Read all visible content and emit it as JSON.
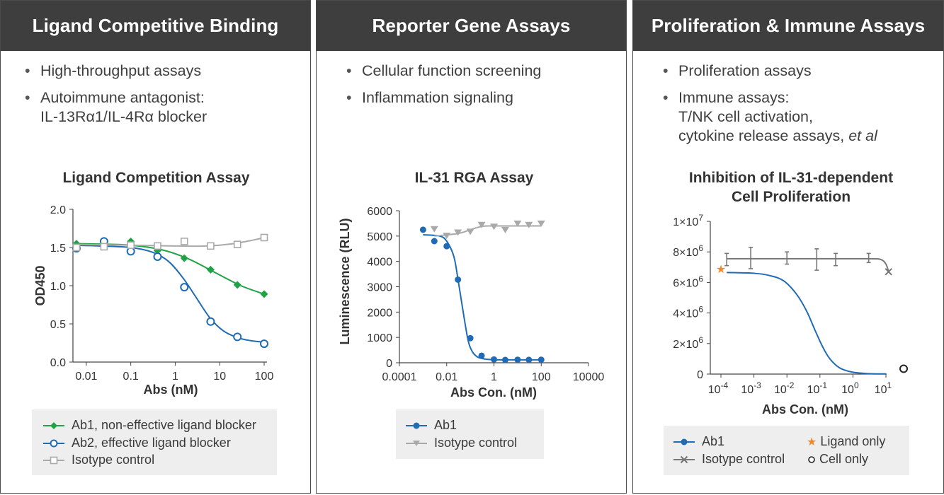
{
  "panels": [
    {
      "header": "Ligand Competitive Binding",
      "bullets": [
        {
          "text": "High-throughput assays"
        },
        {
          "text": "Autoimmune antagonist:",
          "line2": "IL-13Rα1/IL-4Rα blocker"
        }
      ],
      "chart_title": "Ligand Competition Assay",
      "legend": [
        "Ab1, non-effective ligand blocker",
        "Ab2, effective ligand blocker",
        "Isotype control"
      ]
    },
    {
      "header": "Reporter Gene Assays",
      "bullets": [
        {
          "text": "Cellular function screening"
        },
        {
          "text": "Inflammation signaling"
        }
      ],
      "chart_title": "IL-31 RGA Assay",
      "legend": [
        "Ab1",
        "Isotype control"
      ]
    },
    {
      "header": "Proliferation & Immune Assays",
      "bullets": [
        {
          "text": "Proliferation assays"
        },
        {
          "text": "Immune assays:",
          "line2": "T/NK cell activation,",
          "line3": "cytokine release assays, ",
          "line3_italic": "et al"
        }
      ],
      "chart_title_line1": "Inhibition of IL-31-dependent",
      "chart_title_line2": "Cell Proliferation",
      "legend": [
        "Ab1",
        "Isotype control",
        "Ligand only",
        "Cell only"
      ]
    }
  ],
  "colors": {
    "blue": "#1f6bb5",
    "green": "#1fa344",
    "gray": "#a9a9a9",
    "darkgray": "#777777",
    "orange": "#f0892a"
  },
  "chart_data": [
    {
      "type": "scatter",
      "title": "Ligand Competition Assay",
      "xlabel": "Abs (nM)",
      "ylabel": "OD450",
      "xscale": "log",
      "xlim": [
        0.005,
        100
      ],
      "ylim": [
        0,
        2.0
      ],
      "xticks": [
        0.01,
        0.1,
        1,
        10,
        100
      ],
      "xtick_labels": [
        "0.01",
        "0.1",
        "1",
        "10",
        "100"
      ],
      "yticks": [
        0,
        0.5,
        1.0,
        1.5,
        2.0
      ],
      "ytick_labels": [
        "0.0",
        "0.5",
        "1.0",
        "1.5",
        "2.0"
      ],
      "legend_position": "bottom",
      "series": [
        {
          "name": "Ab1, non-effective ligand blocker",
          "marker": "diamond",
          "color": "#1fa344",
          "x": [
            0.006,
            0.025,
            0.1,
            0.4,
            1.6,
            6.25,
            25,
            100
          ],
          "y": [
            1.55,
            1.52,
            1.58,
            1.46,
            1.36,
            1.21,
            1.01,
            0.89
          ],
          "fit_x": [
            0.005,
            0.02,
            0.1,
            0.5,
            2,
            8,
            30,
            100
          ],
          "fit_y": [
            1.55,
            1.545,
            1.53,
            1.47,
            1.35,
            1.17,
            1.0,
            0.89
          ]
        },
        {
          "name": "Ab2, effective ligand blocker",
          "marker": "open-circle",
          "color": "#1f6bb5",
          "x": [
            0.006,
            0.025,
            0.1,
            0.4,
            1.6,
            6.25,
            25,
            100
          ],
          "y": [
            1.49,
            1.58,
            1.45,
            1.38,
            0.98,
            0.53,
            0.33,
            0.24
          ],
          "fit_x": [
            0.005,
            0.02,
            0.1,
            0.3,
            0.7,
            1.5,
            3,
            6,
            12,
            25,
            50,
            100
          ],
          "fit_y": [
            1.53,
            1.52,
            1.5,
            1.44,
            1.32,
            1.1,
            0.84,
            0.58,
            0.41,
            0.32,
            0.28,
            0.26
          ]
        },
        {
          "name": "Isotype control",
          "marker": "open-square",
          "color": "#a9a9a9",
          "x": [
            0.006,
            0.025,
            0.1,
            0.4,
            1.6,
            6.25,
            25,
            100
          ],
          "y": [
            1.5,
            1.51,
            1.53,
            1.52,
            1.58,
            1.52,
            1.54,
            1.63
          ],
          "fit_x": [
            0.005,
            0.1,
            1,
            5,
            20,
            60,
            100
          ],
          "fit_y": [
            1.54,
            1.53,
            1.52,
            1.52,
            1.55,
            1.6,
            1.63
          ]
        }
      ]
    },
    {
      "type": "scatter",
      "title": "IL-31 RGA Assay",
      "xlabel": "Abs Con. (nM)",
      "ylabel": "Luminescence (RLU)",
      "xscale": "log",
      "xlim": [
        0.0001,
        10000
      ],
      "ylim": [
        0,
        6000
      ],
      "xticks": [
        0.0001,
        0.01,
        1,
        100,
        10000
      ],
      "xtick_labels": [
        "0.0001",
        "0.01",
        "1",
        "100",
        "10000"
      ],
      "yticks": [
        0,
        1000,
        2000,
        3000,
        4000,
        5000,
        6000
      ],
      "ytick_labels": [
        "0",
        "1000",
        "2000",
        "3000",
        "4000",
        "5000",
        "6000"
      ],
      "legend_position": "bottom",
      "series": [
        {
          "name": "Ab1",
          "marker": "circle",
          "color": "#1f6bb5",
          "x": [
            0.001,
            0.003,
            0.01,
            0.03,
            0.1,
            0.3,
            1,
            3,
            10,
            30,
            100
          ],
          "y": [
            5250,
            4800,
            4600,
            3280,
            970,
            280,
            130,
            110,
            120,
            115,
            120
          ],
          "fit_x": [
            0.001,
            0.005,
            0.01,
            0.02,
            0.03,
            0.05,
            0.08,
            0.12,
            0.2,
            0.4,
            1,
            3,
            10,
            100
          ],
          "fit_y": [
            5050,
            5000,
            4800,
            4200,
            3300,
            2000,
            900,
            450,
            230,
            150,
            120,
            115,
            115,
            115
          ]
        },
        {
          "name": "Isotype control",
          "marker": "down-triangle",
          "color": "#a9a9a9",
          "x": [
            0.003,
            0.01,
            0.03,
            0.1,
            0.3,
            1,
            3,
            10,
            30,
            100
          ],
          "y": [
            5280,
            5020,
            5150,
            5180,
            5450,
            5380,
            5250,
            5500,
            5450,
            5500
          ],
          "fit_x": [
            0.003,
            0.03,
            0.1,
            0.3,
            1,
            10,
            100
          ],
          "fit_y": [
            5000,
            5100,
            5250,
            5380,
            5400,
            5400,
            5400
          ]
        }
      ]
    },
    {
      "type": "scatter",
      "title": "Inhibition of IL-31-dependent Cell Proliferation",
      "xlabel": "Abs Con. (nM)",
      "ylabel": "",
      "xscale": "log",
      "xlim": [
        0.0001,
        10
      ],
      "ylim": [
        0,
        10000000
      ],
      "xticks": [
        0.0001,
        0.001,
        0.01,
        0.1,
        1,
        10
      ],
      "xtick_base": "10",
      "xtick_exponents": [
        "-4",
        "-3",
        "-2",
        "-1",
        "0",
        "1"
      ],
      "yticks": [
        0,
        2000000,
        4000000,
        6000000,
        8000000,
        10000000
      ],
      "ytick_labels": [
        "0",
        "2×10",
        "4×10",
        "6×10",
        "8×10",
        "1×10"
      ],
      "ytick_exponents": [
        "",
        "6",
        "6",
        "6",
        "6",
        "7"
      ],
      "legend_position": "bottom",
      "series": [
        {
          "name": "Ab1",
          "marker": "circle",
          "color": "#1f6bb5",
          "fit_x": [
            0.00015,
            0.001,
            0.003,
            0.008,
            0.02,
            0.04,
            0.07,
            0.12,
            0.2,
            0.4,
            1,
            3,
            10
          ],
          "fit_y": [
            6650000,
            6600000,
            6450000,
            6100000,
            5200000,
            4100000,
            2900000,
            1800000,
            1000000,
            400000,
            120000,
            30000,
            10000
          ]
        },
        {
          "name": "Isotype control",
          "marker": "x",
          "color": "#777777",
          "x": [
            0.00015,
            0.0008,
            0.01,
            0.08,
            0.3,
            3,
            12
          ],
          "y": [
            7500000,
            7600000,
            7600000,
            7500000,
            7500000,
            7600000,
            6700000
          ],
          "err": [
            400000,
            700000,
            400000,
            700000,
            400000,
            300000,
            0
          ],
          "fit_x": [
            0.00015,
            0.001,
            0.1,
            3,
            7,
            10,
            12
          ],
          "fit_y": [
            7550000,
            7550000,
            7550000,
            7550000,
            7500000,
            7200000,
            6700000
          ]
        },
        {
          "name": "Ligand only",
          "marker": "star",
          "color": "#f0892a",
          "x_label": "ligand",
          "y": 6900000
        },
        {
          "name": "Cell only",
          "marker": "open-circle",
          "color": "#222222",
          "x_label": "cell",
          "y": 350000
        }
      ]
    }
  ]
}
